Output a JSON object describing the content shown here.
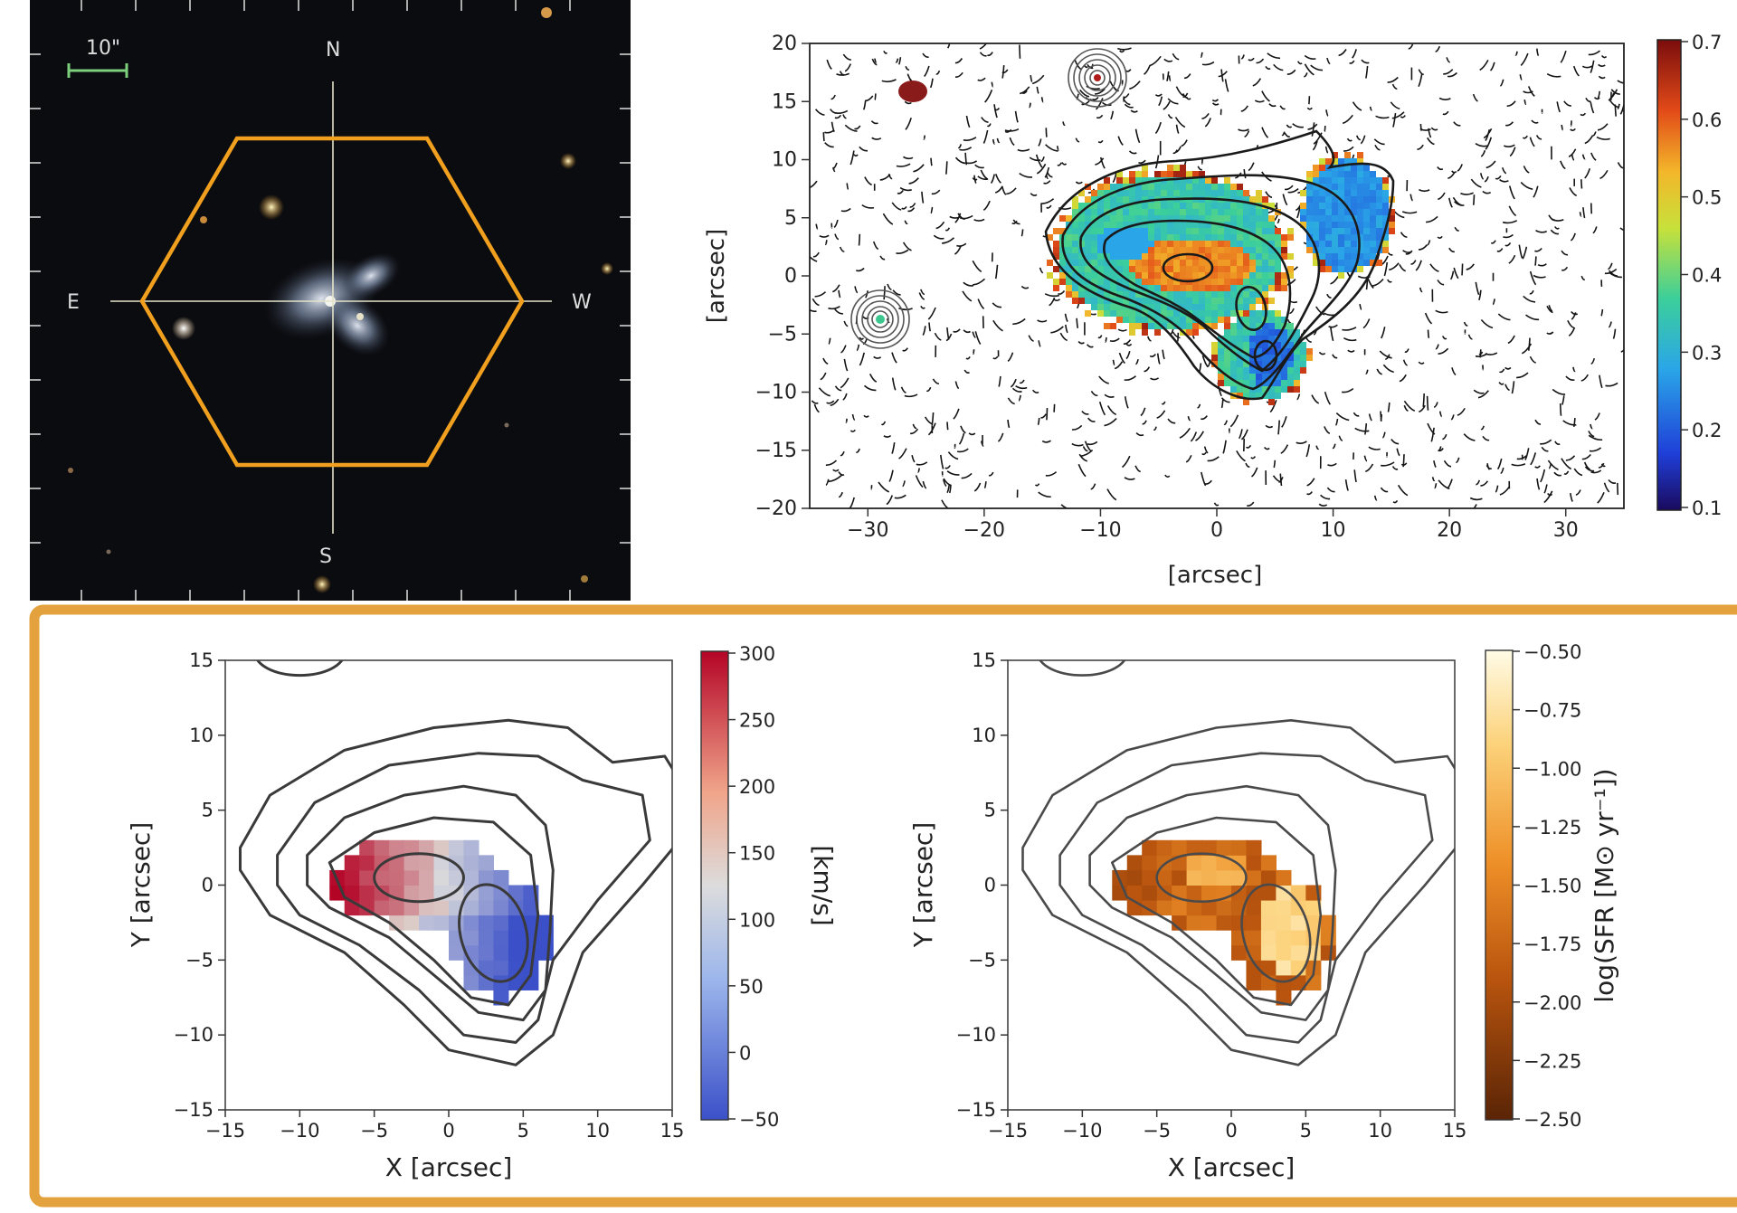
{
  "chart_data": [
    {
      "type": "image",
      "sky": {
        "scale_label": "10\"",
        "compass": {
          "north": "N",
          "south": "S",
          "east": "E",
          "west": "W"
        }
      },
      "accent_color": "#f0a01e"
    },
    {
      "type": "heatmap",
      "xlabel": "[arcsec]",
      "ylabel": "[arcsec]",
      "xlim": [
        -35,
        35
      ],
      "ylim": [
        -20,
        20
      ],
      "xticks": [
        -30,
        -20,
        -10,
        0,
        10,
        20,
        30
      ],
      "yticks": [
        -20,
        -15,
        -10,
        -5,
        0,
        5,
        10,
        15,
        20
      ],
      "colorbar": {
        "range": [
          0.1,
          0.7
        ],
        "ticks": [
          "0.7",
          "0.6",
          "0.5",
          "0.4",
          "0.3",
          "0.2",
          "0.1"
        ],
        "colormap": "jet"
      },
      "contours": true
    },
    {
      "type": "heatmap",
      "xlabel": "X [arcsec]",
      "ylabel": "Y [arcsec]",
      "xlim": [
        -15,
        15
      ],
      "ylim": [
        -15,
        15
      ],
      "xticks": [
        -15,
        -10,
        -5,
        0,
        5,
        10,
        15
      ],
      "yticks": [
        -15,
        -10,
        -5,
        0,
        5,
        10,
        15
      ],
      "colorbar": {
        "label": "[km/s]",
        "range": [
          -50,
          300
        ],
        "ticks": [
          "300",
          "250",
          "200",
          "150",
          "100",
          "50",
          "0",
          "−50"
        ],
        "colormap": "coolwarm"
      },
      "contours": true
    },
    {
      "type": "heatmap",
      "xlabel": "X [arcsec]",
      "ylabel": "Y [arcsec]",
      "xlim": [
        -15,
        15
      ],
      "ylim": [
        -15,
        15
      ],
      "xticks": [
        -15,
        -10,
        -5,
        0,
        5,
        10,
        15
      ],
      "yticks": [
        -15,
        -10,
        -5,
        0,
        5,
        10,
        15
      ],
      "colorbar": {
        "label": "log(SFR [M⊙ yr⁻¹])",
        "range": [
          -2.5,
          -0.5
        ],
        "ticks": [
          "−0.50",
          "−0.75",
          "−1.00",
          "−1.25",
          "−1.50",
          "−1.75",
          "−2.00",
          "−2.25",
          "−2.50"
        ],
        "colormap": "YlOrBr"
      },
      "contours": true
    }
  ]
}
